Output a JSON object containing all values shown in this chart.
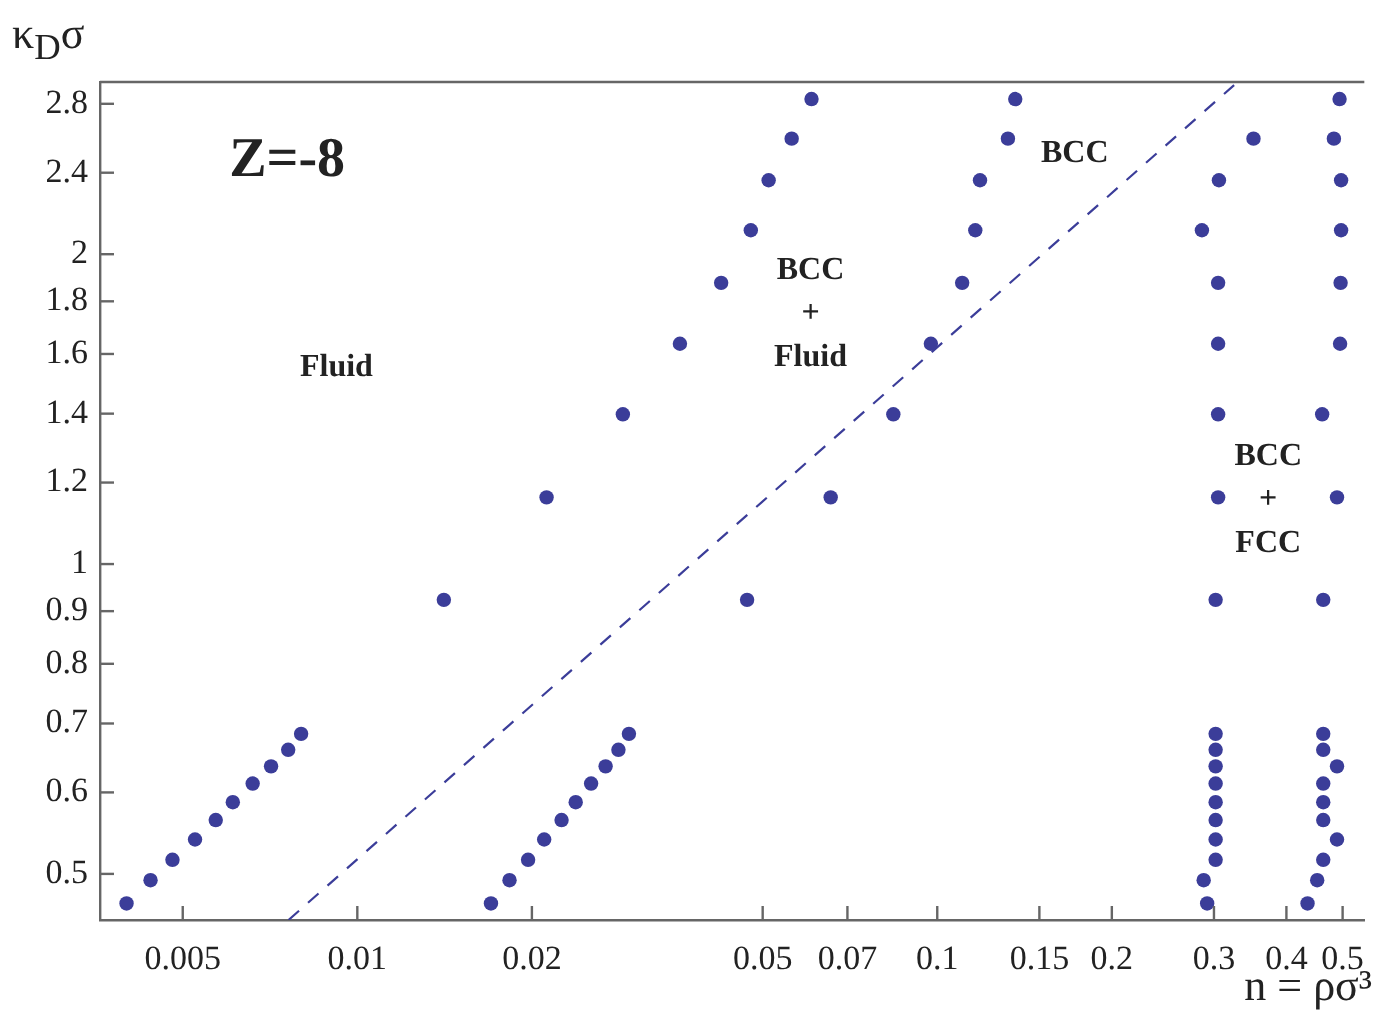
{
  "chart_data": {
    "type": "scatter",
    "xlabel": "n = ρσ³",
    "ylabel": "κ$_{D}$σ",
    "log": "xy",
    "grid": false,
    "legend": false,
    "marker": "circle",
    "xlim": [
      0.0036,
      0.545
    ],
    "ylim": [
      0.451,
      2.94
    ],
    "xticks": [
      0.005,
      0.01,
      0.02,
      0.05,
      0.07,
      0.1,
      0.15,
      0.2,
      0.3,
      0.4,
      0.5
    ],
    "yticks": [
      0.5,
      0.6,
      0.7,
      0.8,
      0.9,
      1,
      1.2,
      1.4,
      1.6,
      1.8,
      2,
      2.4,
      2.8
    ],
    "series": [
      {
        "color": "#3b3d99",
        "x": [
          0.004,
          0.0044,
          0.0048,
          0.00525,
          0.0057,
          0.0061,
          0.0066,
          0.0071,
          0.0076,
          0.008,
          0.0141,
          0.0212,
          0.0287,
          0.036,
          0.0424,
          0.0477,
          0.0512,
          0.0561,
          0.0607
        ],
        "values": [
          0.468,
          0.493,
          0.516,
          0.54,
          0.564,
          0.587,
          0.612,
          0.636,
          0.66,
          0.684,
          0.923,
          1.161,
          1.398,
          1.637,
          1.876,
          2.11,
          2.36,
          2.59,
          2.83
        ]
      },
      {
        "color": "#3b3d99",
        "x": [
          0.017,
          0.0183,
          0.0197,
          0.021,
          0.0225,
          0.0238,
          0.0253,
          0.0268,
          0.0282,
          0.0294,
          0.047,
          0.0655,
          0.084,
          0.0975,
          0.1104,
          0.1163,
          0.1185,
          0.1324,
          0.1363
        ],
        "values": [
          0.468,
          0.493,
          0.516,
          0.54,
          0.564,
          0.587,
          0.612,
          0.636,
          0.66,
          0.684,
          0.923,
          1.161,
          1.398,
          1.637,
          1.876,
          2.11,
          2.36,
          2.59,
          2.83
        ]
      },
      {
        "color": "#3b3d99",
        "x": [
          0.292,
          0.288,
          0.302,
          0.302,
          0.302,
          0.302,
          0.302,
          0.302,
          0.302,
          0.302,
          0.302,
          0.305,
          0.305,
          0.305,
          0.305,
          0.286,
          0.306,
          0.351
        ],
        "values": [
          0.468,
          0.493,
          0.516,
          0.54,
          0.564,
          0.587,
          0.612,
          0.636,
          0.66,
          0.684,
          0.923,
          1.161,
          1.398,
          1.637,
          1.876,
          2.11,
          2.36,
          2.59
        ]
      },
      {
        "color": "#3b3d99",
        "x": [
          0.435,
          0.452,
          0.463,
          0.489,
          0.463,
          0.463,
          0.463,
          0.489,
          0.463,
          0.463,
          0.463,
          0.489,
          0.461,
          0.495,
          0.496,
          0.497,
          0.497,
          0.483,
          0.494
        ],
        "values": [
          0.468,
          0.493,
          0.516,
          0.54,
          0.564,
          0.587,
          0.612,
          0.636,
          0.66,
          0.684,
          0.923,
          1.161,
          1.398,
          1.637,
          1.876,
          2.11,
          2.36,
          2.59,
          2.83
        ]
      },
      {
        "type": "line",
        "color": "#3b3d99",
        "line_style": "dashed",
        "marker": "none",
        "x": [
          0.00761,
          0.325
        ],
        "values": [
          0.451,
          2.92
        ]
      }
    ],
    "annotations": [
      "Z=-8",
      "Fluid",
      "BCC\n+\nFluid",
      "BCC",
      "BCC\n+\nFCC"
    ]
  }
}
